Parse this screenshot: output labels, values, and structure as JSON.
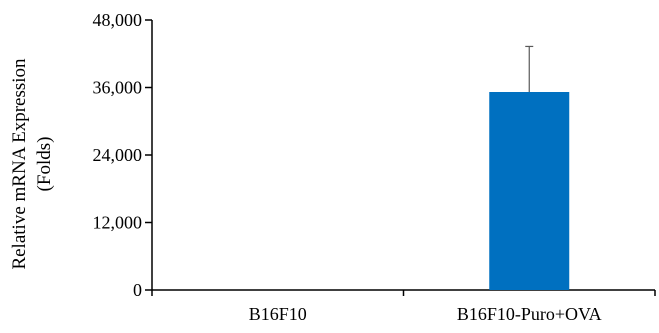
{
  "chart_data": {
    "type": "bar",
    "title": "",
    "xlabel": "",
    "ylabel": "Relative mRNA Expression",
    "ylabel_line2": "(Folds)",
    "categories": [
      "B16F10",
      "B16F10-Puro+OVA"
    ],
    "values": [
      0,
      35200
    ],
    "error_upper": [
      0,
      8100
    ],
    "ylim": [
      0,
      48000
    ],
    "yticks": [
      0,
      12000,
      24000,
      36000,
      48000
    ],
    "ytick_labels": [
      "0",
      "12,000",
      "24,000",
      "36,000",
      "48,000"
    ],
    "grid": false,
    "legend": "none",
    "colors": {
      "bar": "#0070C0",
      "axis": "#000000",
      "error_bar": "#595959"
    }
  }
}
